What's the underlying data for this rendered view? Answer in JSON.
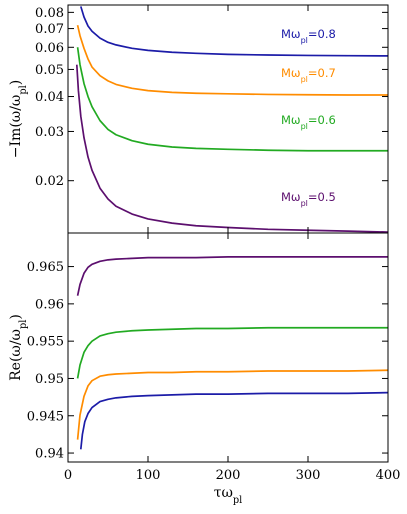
{
  "chart_data": [
    {
      "type": "line",
      "ylabel": "−Im(ω/ω",
      "ylabel_sub": "pl",
      "ylabel_tail": ")",
      "yscale": "log",
      "xlim": [
        0,
        400
      ],
      "ylim": [
        0.013,
        0.085
      ],
      "yticks": [
        0.02,
        0.03,
        0.04,
        0.05,
        0.06,
        0.07,
        0.08
      ],
      "ytick_labels": [
        "0.02",
        "0.03",
        "0.04",
        "0.05",
        "0.06",
        "0.07",
        "0.08"
      ],
      "xticks": [
        0,
        100,
        200,
        300,
        400
      ],
      "show_x_tick_labels": false,
      "grid": false,
      "series": [
        {
          "name": "Mω",
          "name_sub": "pl",
          "name_value": "=0.8",
          "color": "#1c1ca8",
          "x": [
            16,
            20,
            25,
            30,
            40,
            50,
            60,
            80,
            100,
            130,
            160,
            200,
            250,
            300,
            350,
            400
          ],
          "y": [
            0.084,
            0.077,
            0.0715,
            0.0685,
            0.0647,
            0.0625,
            0.0612,
            0.0595,
            0.0585,
            0.0576,
            0.0571,
            0.0566,
            0.0563,
            0.0561,
            0.056,
            0.0559
          ]
        },
        {
          "name": "Mω",
          "name_sub": "pl",
          "name_value": "=0.7",
          "color": "#ff8c00",
          "x": [
            12,
            15,
            20,
            25,
            30,
            40,
            50,
            60,
            80,
            100,
            130,
            160,
            200,
            250,
            300,
            350,
            400
          ],
          "y": [
            0.072,
            0.066,
            0.0595,
            0.0545,
            0.051,
            0.0475,
            0.0455,
            0.0442,
            0.0428,
            0.042,
            0.0414,
            0.0411,
            0.0409,
            0.0407,
            0.0406,
            0.0405,
            0.0405
          ]
        },
        {
          "name": "Mω",
          "name_sub": "pl",
          "name_value": "=0.6",
          "color": "#22aa22",
          "x": [
            12,
            15,
            20,
            25,
            30,
            40,
            50,
            60,
            80,
            100,
            130,
            160,
            200,
            250,
            300,
            350,
            400
          ],
          "y": [
            0.06,
            0.052,
            0.0445,
            0.04,
            0.0368,
            0.0328,
            0.0305,
            0.0292,
            0.0278,
            0.027,
            0.0264,
            0.0261,
            0.0259,
            0.0257,
            0.0256,
            0.0256,
            0.0256
          ]
        },
        {
          "name": "Mω",
          "name_sub": "pl",
          "name_value": "=0.5",
          "color": "#5c0f6e",
          "x": [
            11,
            13,
            16,
            20,
            25,
            30,
            40,
            50,
            60,
            80,
            100,
            130,
            160,
            200,
            250,
            300,
            350,
            400
          ],
          "y": [
            0.052,
            0.042,
            0.034,
            0.0285,
            0.0243,
            0.0218,
            0.0188,
            0.0172,
            0.0162,
            0.0152,
            0.0146,
            0.0141,
            0.0138,
            0.0136,
            0.0134,
            0.0133,
            0.0132,
            0.0131
          ]
        }
      ]
    },
    {
      "type": "line",
      "ylabel": "Re(ω/ω",
      "ylabel_sub": "pl",
      "ylabel_tail": ")",
      "xlabel": "τω",
      "xlabel_sub": "pl",
      "xlim": [
        0,
        400
      ],
      "ylim": [
        0.9388,
        0.9695
      ],
      "yticks": [
        0.94,
        0.945,
        0.95,
        0.955,
        0.96,
        0.965
      ],
      "ytick_labels": [
        "0.94",
        "0.945",
        "0.95",
        "0.955",
        "0.96",
        "0.965"
      ],
      "xticks": [
        0,
        100,
        200,
        300,
        400
      ],
      "xtick_labels": [
        "0",
        "100",
        "200",
        "300",
        "400"
      ],
      "grid": false,
      "series": [
        {
          "color": "#5c0f6e",
          "x": [
            12,
            15,
            20,
            25,
            30,
            40,
            50,
            60,
            80,
            100,
            130,
            160,
            200,
            250,
            300,
            350,
            400
          ],
          "y": [
            0.9611,
            0.9626,
            0.9641,
            0.9649,
            0.9653,
            0.9657,
            0.9659,
            0.966,
            0.9661,
            0.9662,
            0.9662,
            0.9662,
            0.9663,
            0.9663,
            0.9663,
            0.9663,
            0.9663
          ]
        },
        {
          "color": "#22aa22",
          "x": [
            12,
            15,
            20,
            25,
            30,
            40,
            50,
            60,
            80,
            100,
            130,
            160,
            200,
            250,
            300,
            350,
            400
          ],
          "y": [
            0.95,
            0.9518,
            0.9535,
            0.9544,
            0.955,
            0.9557,
            0.956,
            0.9562,
            0.9564,
            0.9565,
            0.9566,
            0.9567,
            0.9567,
            0.9568,
            0.9568,
            0.9568,
            0.9568
          ]
        },
        {
          "color": "#ff8c00",
          "x": [
            12,
            15,
            20,
            25,
            30,
            40,
            50,
            60,
            80,
            100,
            130,
            160,
            200,
            250,
            300,
            350,
            400
          ],
          "y": [
            0.9418,
            0.9451,
            0.9476,
            0.949,
            0.9497,
            0.9503,
            0.9505,
            0.9506,
            0.9507,
            0.9508,
            0.9508,
            0.9509,
            0.9509,
            0.951,
            0.951,
            0.951,
            0.9511
          ]
        },
        {
          "color": "#1c1ca8",
          "x": [
            16,
            18,
            21,
            25,
            30,
            40,
            50,
            60,
            80,
            100,
            130,
            160,
            200,
            250,
            300,
            350,
            400
          ],
          "y": [
            0.9405,
            0.9425,
            0.9442,
            0.9453,
            0.9461,
            0.9469,
            0.9472,
            0.9474,
            0.9476,
            0.9477,
            0.9478,
            0.9479,
            0.9479,
            0.948,
            0.948,
            0.948,
            0.9481
          ]
        }
      ]
    }
  ]
}
